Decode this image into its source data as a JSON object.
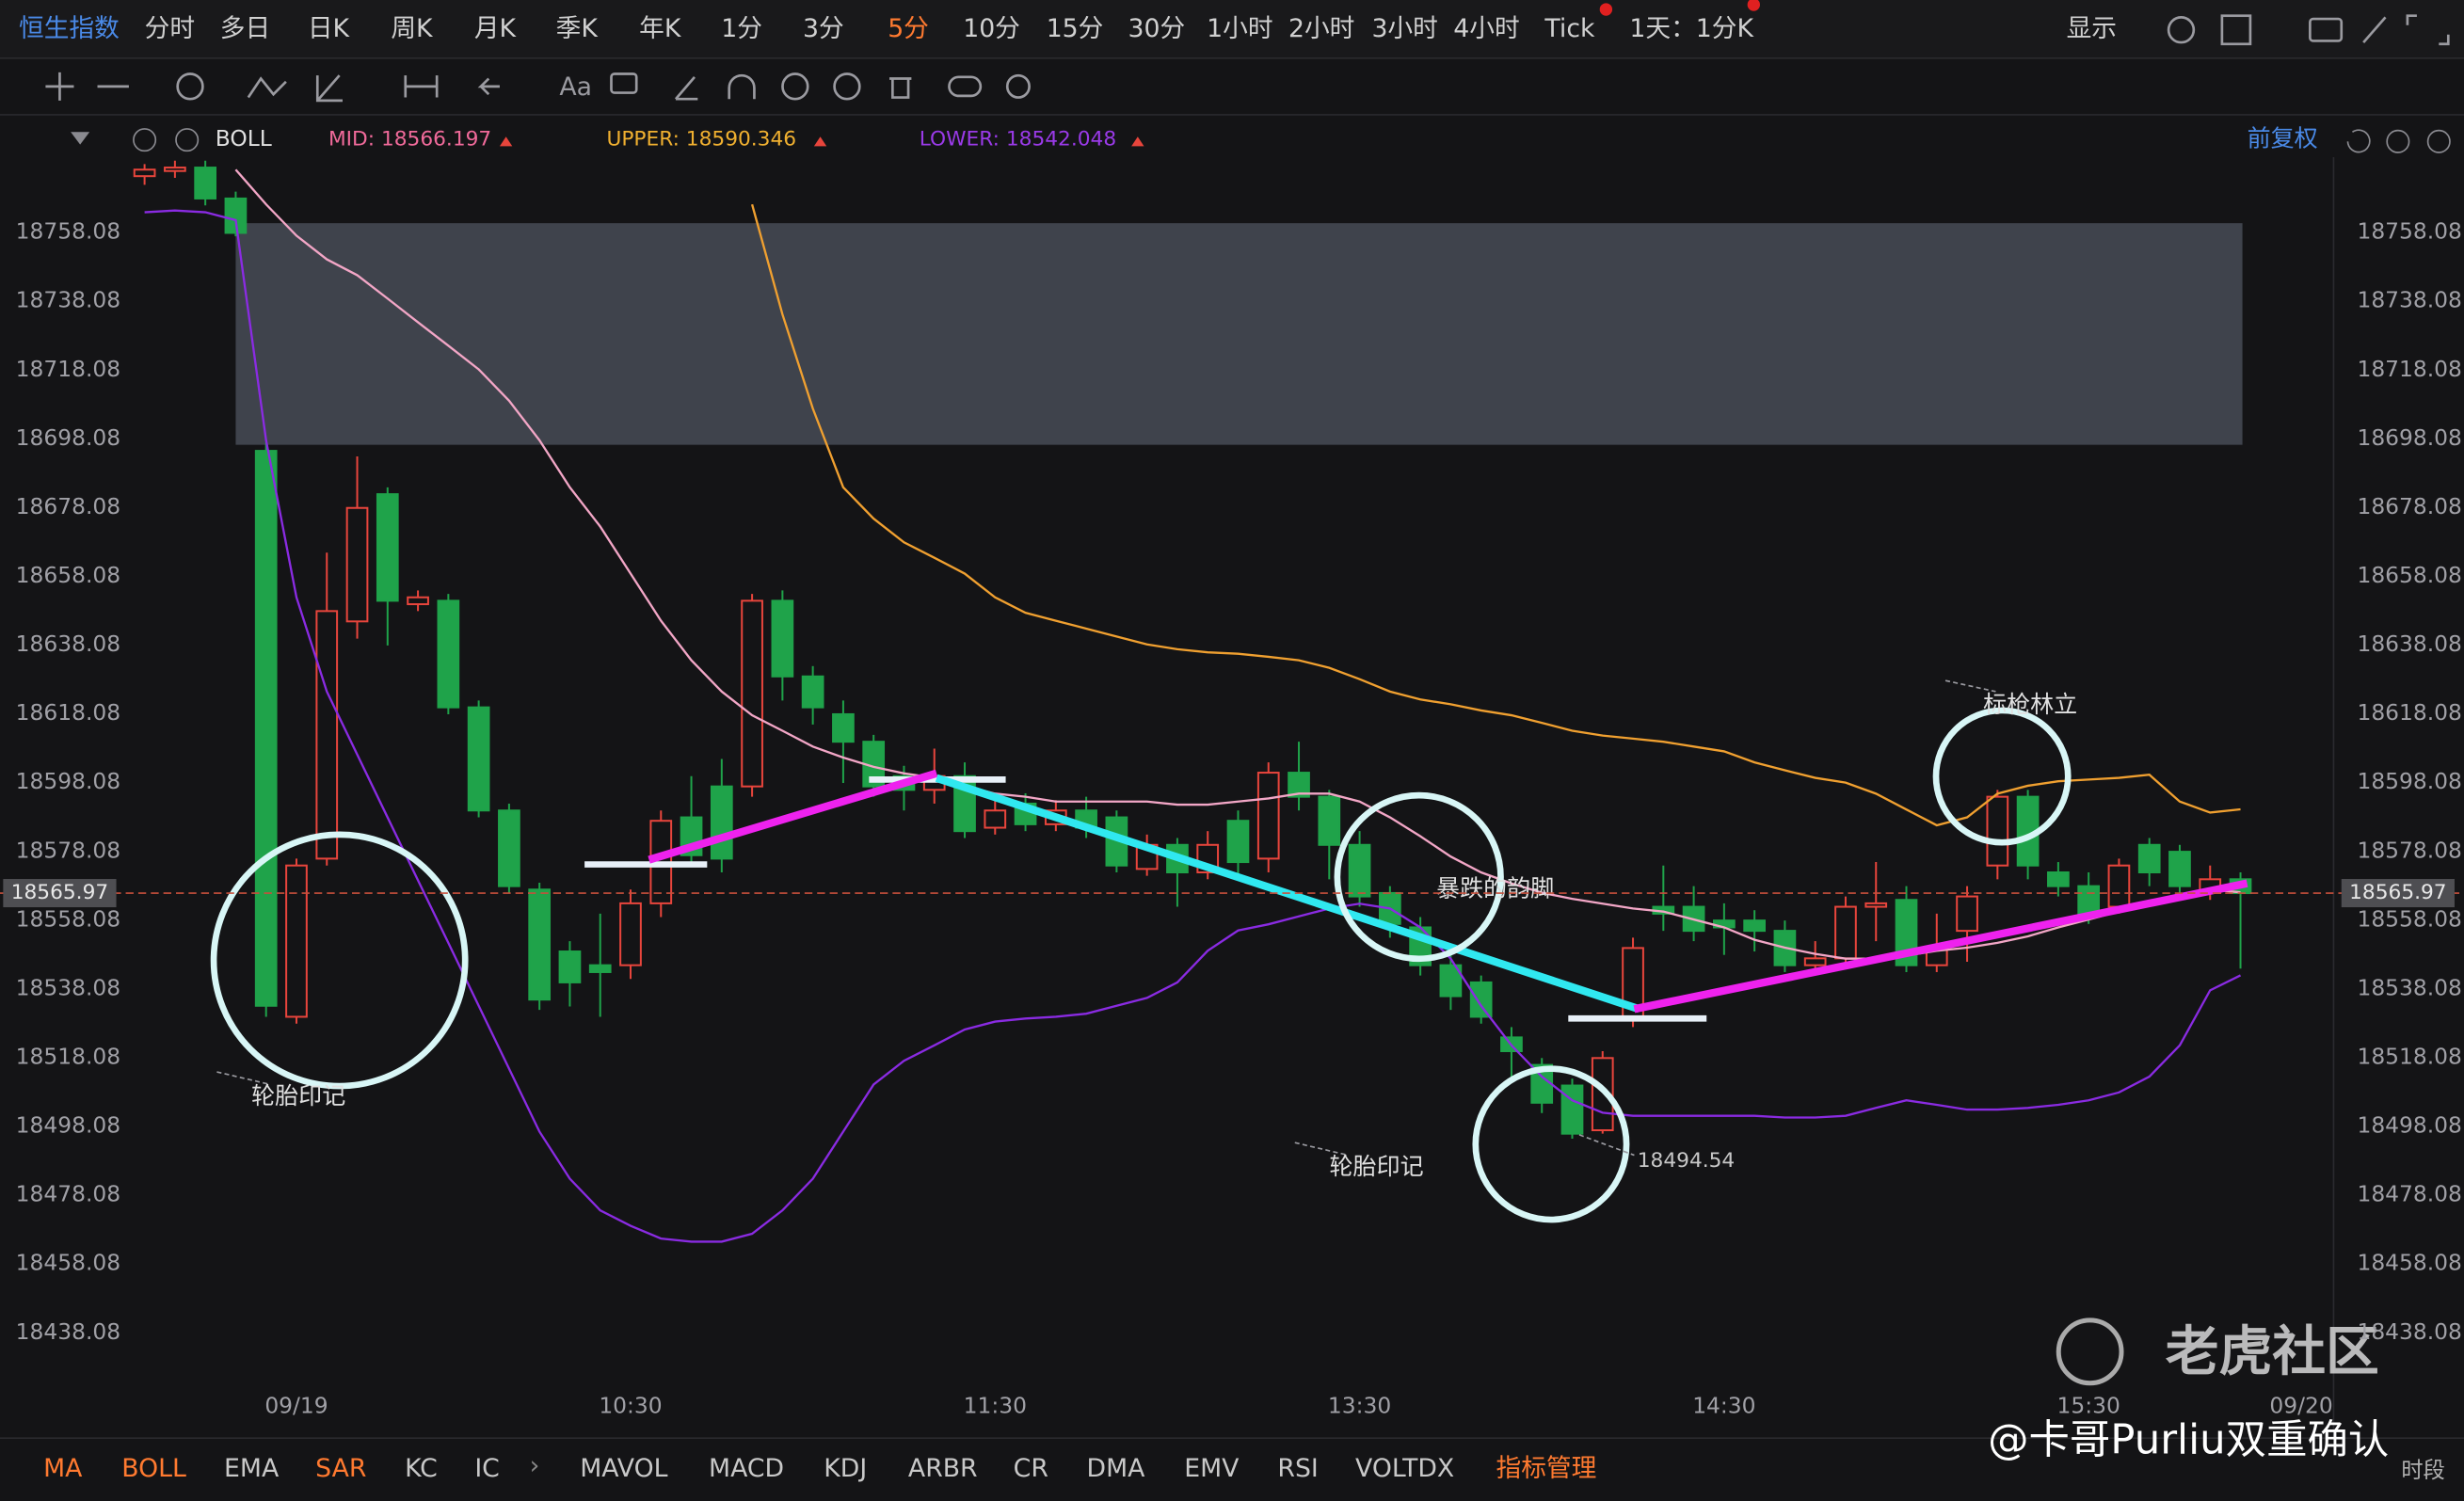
{
  "toolbar": {
    "symbol": "恒生指数",
    "periods": [
      {
        "label": "分时"
      },
      {
        "label": "多日"
      },
      {
        "label": "日K"
      },
      {
        "label": "周K"
      },
      {
        "label": "月K"
      },
      {
        "label": "季K"
      },
      {
        "label": "年K"
      },
      {
        "label": "1分"
      },
      {
        "label": "3分"
      },
      {
        "label": "5分",
        "active": true
      },
      {
        "label": "10分"
      },
      {
        "label": "15分"
      },
      {
        "label": "30分"
      },
      {
        "label": "1小时"
      },
      {
        "label": "2小时"
      },
      {
        "label": "3小时"
      },
      {
        "label": "4小时"
      },
      {
        "label": "Tick"
      }
    ],
    "period_select": "1天：1分K",
    "display": "显示"
  },
  "indicator_header": {
    "name": "BOLL",
    "mid": "MID: 18566.197",
    "upper": "UPPER: 18590.346",
    "lower": "LOWER: 18542.048",
    "adjust": "前复权"
  },
  "chart_data": {
    "type": "candlestick",
    "categories": [
      null,
      null,
      null,
      null,
      null,
      "09/19",
      null,
      null,
      null,
      null,
      null,
      null,
      null,
      null,
      null,
      null,
      "10:30",
      null,
      null,
      null,
      null,
      null,
      null,
      null,
      null,
      null,
      null,
      null,
      "11:30",
      null,
      null,
      null,
      null,
      null,
      null,
      null,
      null,
      null,
      null,
      null,
      "13:30",
      null,
      null,
      null,
      null,
      null,
      null,
      null,
      null,
      null,
      null,
      null,
      "14:30",
      null,
      null,
      null,
      null,
      null,
      null,
      null,
      null,
      null,
      null,
      null,
      "15:30",
      null,
      null,
      null,
      null,
      null,
      null,
      "09/20"
    ],
    "open": [
      18774.5,
      18776,
      18777,
      18768,
      18694.6,
      18530,
      18576,
      18645,
      18682,
      18650,
      18651,
      18620,
      18590,
      18567,
      18549,
      18545,
      18545,
      18563,
      18588,
      18597,
      18597,
      18651,
      18629,
      18618,
      18610,
      18600,
      18596,
      18600,
      18585,
      18592,
      18586,
      18590,
      18588,
      18573,
      18580,
      18572,
      18587,
      18576,
      18601,
      18594,
      18580,
      18566,
      18556,
      18545,
      18540,
      18524,
      18516,
      18510,
      18497,
      18530,
      18562,
      18562,
      18558,
      18558,
      18555,
      18545,
      18547,
      18562,
      18564,
      18545,
      18555,
      18574,
      18594,
      18572,
      18568,
      18562,
      18580,
      18578,
      18566,
      18570,
      null,
      null
    ],
    "high": [
      18778,
      18779,
      18779,
      18770,
      18697,
      18576,
      18665,
      18693,
      18684,
      18654,
      18653,
      18622,
      18592,
      18569,
      18552,
      18560,
      18567,
      18590,
      18600,
      18605,
      18653,
      18654,
      18632,
      18622,
      18612,
      18603,
      18608,
      18604,
      18595,
      18595,
      18593,
      18594,
      18590,
      18583,
      18582,
      18584,
      18590,
      18604,
      18610,
      18596,
      18584,
      18568,
      18559,
      18548,
      18542,
      18527,
      18518,
      18512,
      18520,
      18553,
      18574,
      18568,
      18563,
      18561,
      18558,
      18552,
      18565,
      18575,
      18568,
      18560,
      18568,
      18596,
      18596,
      18575,
      18572,
      18576,
      18582,
      18580,
      18574,
      18572,
      null,
      null
    ],
    "low": [
      18772,
      18774,
      18766,
      18757,
      18530,
      18528,
      18574,
      18640,
      18638,
      18648,
      18618,
      18588,
      18566,
      18532,
      18533,
      18530,
      18541,
      18559,
      18574,
      18572,
      18594,
      18622,
      18615,
      18598,
      18594,
      18590,
      18592,
      18582,
      18583,
      18584,
      18584,
      18582,
      18572,
      18571,
      18562,
      18570,
      18570,
      18572,
      18590,
      18570,
      18562,
      18553,
      18542,
      18532,
      18528,
      18512,
      18502,
      18494.54,
      18496,
      18527,
      18555,
      18552,
      18548,
      18549,
      18543,
      18543,
      18544,
      18552,
      18543,
      18543,
      18546,
      18570,
      18570,
      18565,
      18557,
      18560,
      18568,
      18565,
      18564,
      18544,
      null,
      null
    ],
    "close": [
      18776.4,
      18777,
      18768,
      18758,
      18533.2,
      18574,
      18648,
      18678,
      18651,
      18652,
      18620,
      18590,
      18568,
      18535,
      18540,
      18543,
      18563,
      18587,
      18577,
      18576,
      18651,
      18629,
      18620,
      18610,
      18597,
      18596,
      18600,
      18584,
      18590,
      18586,
      18590,
      18585,
      18574,
      18580,
      18572,
      18580,
      18575,
      18601,
      18594,
      18580,
      18565,
      18557,
      18545,
      18536,
      18530,
      18520,
      18505,
      18496,
      18518,
      18550,
      18560,
      18555,
      18556,
      18555,
      18545,
      18547,
      18562,
      18563,
      18545,
      18550,
      18565,
      18594,
      18574,
      18568,
      18560,
      18574,
      18572,
      18568,
      18570,
      18565.97,
      null,
      null
    ],
    "up_color": "#e8453c",
    "down_color": "#1fa34a",
    "series": [
      {
        "color": "#f0a030",
        "values": [
          null,
          null,
          null,
          null,
          null,
          null,
          null,
          null,
          null,
          null,
          null,
          null,
          null,
          null,
          null,
          null,
          null,
          null,
          null,
          null,
          18766.3,
          18734.3,
          18706.9,
          18684.0,
          18674.9,
          18668.0,
          18663.5,
          18658.9,
          18652.0,
          18647.5,
          18645.2,
          18642.9,
          18640.6,
          18638.3,
          18636.9,
          18636.0,
          18635.6,
          18634.7,
          18633.7,
          18631.5,
          18628.2,
          18624.6,
          18622.3,
          18620.9,
          18619.1,
          18617.7,
          18615.5,
          18613.2,
          18611.8,
          18610.9,
          18610.0,
          18608.6,
          18607.2,
          18604.0,
          18601.7,
          18599.5,
          18598.1,
          18594.9,
          18590.3,
          18585.7,
          18588.0,
          18594.9,
          18597.2,
          18598.5,
          18599.0,
          18599.5,
          18600.4,
          18592.6,
          18589.4,
          18590.346,
          null,
          null
        ]
      },
      {
        "color": "#f2a6c6",
        "values": [
          null,
          null,
          null,
          18776.4,
          18766.3,
          18757.2,
          18750.3,
          18745.7,
          18738.9,
          18732.0,
          18725.2,
          18718.3,
          18709.2,
          18697.7,
          18684.0,
          18672.6,
          18658.9,
          18645.2,
          18633.7,
          18624.6,
          18617.7,
          18613.2,
          18608.6,
          18605.4,
          18602.7,
          18600.8,
          18599.5,
          18597.2,
          18594.9,
          18594.0,
          18592.6,
          18592.6,
          18592.6,
          18592.6,
          18591.7,
          18591.7,
          18592.6,
          18593.5,
          18594.9,
          18594.9,
          18592.6,
          18588.0,
          18582.5,
          18576.6,
          18572.0,
          18568.8,
          18566.1,
          18564.3,
          18562.9,
          18561.5,
          18560.6,
          18558.3,
          18556.0,
          18552.4,
          18550.1,
          18548.3,
          18546.9,
          18546.9,
          18547.8,
          18549.2,
          18550.1,
          18551.5,
          18553.4,
          18556.0,
          18558.3,
          18560.6,
          18562.9,
          18565.2,
          18567.0,
          18566.197,
          null,
          null
        ]
      },
      {
        "color": "#8a2be2",
        "values": [
          18764.0,
          18764.5,
          18764.0,
          18761.7,
          18697.7,
          18652.0,
          18624.6,
          18606.3,
          18588.0,
          18569.7,
          18551.5,
          18533.2,
          18514.9,
          18496.6,
          18482.9,
          18473.7,
          18469.2,
          18465.5,
          18464.6,
          18464.6,
          18466.9,
          18473.7,
          18482.9,
          18496.6,
          18510.3,
          18517.2,
          18521.7,
          18526.3,
          18528.6,
          18529.5,
          18530.0,
          18530.9,
          18533.2,
          18535.5,
          18540.0,
          18549.2,
          18555.1,
          18556.9,
          18559.2,
          18561.5,
          18562.9,
          18561.5,
          18556.0,
          18546.9,
          18533.2,
          18521.7,
          18512.6,
          18505.7,
          18502.1,
          18501.2,
          18501.2,
          18501.2,
          18501.2,
          18501.2,
          18500.7,
          18500.7,
          18501.2,
          18503.5,
          18505.7,
          18504.4,
          18503.0,
          18503.0,
          18503.5,
          18504.4,
          18505.7,
          18508.0,
          18512.6,
          18521.7,
          18537.7,
          18542.048,
          null,
          null
        ]
      }
    ],
    "ylim": [
      18423.45,
      18780.02
    ],
    "yticks": [
      18438.08,
      18458.08,
      18478.08,
      18498.08,
      18518.08,
      18538.08,
      18558.08,
      18578.08,
      18598.08,
      18618.08,
      18638.08,
      18658.08,
      18678.08,
      18698.08,
      18718.08,
      18738.08,
      18758.08
    ],
    "grid": false,
    "last_price": 18565.97,
    "annotations": [
      {
        "text": "轮胎印记"
      },
      {
        "text": "轮胎印记"
      },
      {
        "text": "暴跌的韵脚"
      },
      {
        "text": "标枪林立"
      }
    ]
  },
  "indicator_bar": [
    {
      "label": "MA",
      "active": true
    },
    {
      "label": "BOLL",
      "active": true
    },
    {
      "label": "EMA"
    },
    {
      "label": "SAR",
      "active": true
    },
    {
      "label": "KC"
    },
    {
      "label": "IC"
    },
    {
      "label": "MAVOL"
    },
    {
      "label": "MACD"
    },
    {
      "label": "KDJ"
    },
    {
      "label": "ARBR"
    },
    {
      "label": "CR"
    },
    {
      "label": "DMA"
    },
    {
      "label": "EMV"
    },
    {
      "label": "RSI"
    },
    {
      "label": "VOLTDX"
    },
    {
      "label": "指标管理",
      "active": true
    }
  ],
  "watermark": {
    "brand": "老虎社区",
    "author": "@卡哥Purliu双重确认"
  },
  "footer_right": "时段"
}
